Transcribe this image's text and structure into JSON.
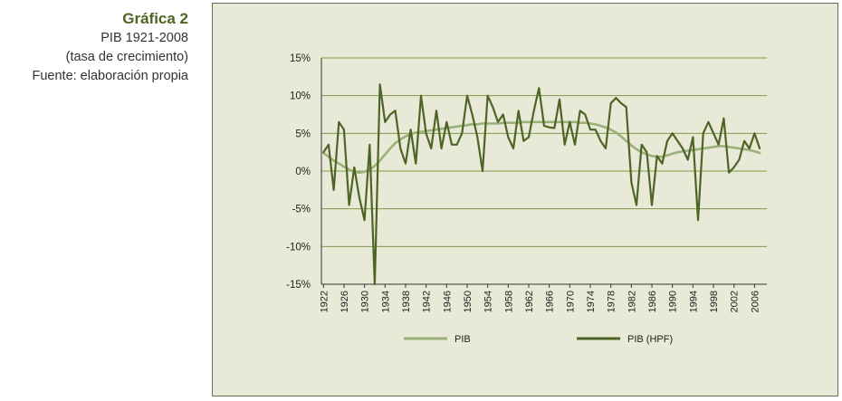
{
  "caption": {
    "title": "Gráfica 2",
    "subtitle": "PIB 1921-2008",
    "unit": "(tasa de crecimiento)",
    "source": "Fuente: elaboración propia"
  },
  "colors": {
    "panel_bg": "#e9e9d7",
    "axis": "#333333",
    "grid": "#7f9a4a",
    "PIB": "#9cb07a",
    "PIB (HPF)": "#4d6425"
  },
  "chart_data": {
    "type": "line",
    "title": "",
    "xlabel": "",
    "ylabel": "",
    "ylim": [
      -15,
      15
    ],
    "yticks": [
      15,
      10,
      5,
      0,
      -5,
      -10,
      -15
    ],
    "ytick_labels": [
      "15%",
      "10%",
      "5%",
      "0%",
      "-5%",
      "-10%",
      "-15%"
    ],
    "xlim": [
      1921.6,
      2008.4
    ],
    "xticks": [
      1922,
      1926,
      1930,
      1934,
      1938,
      1942,
      1946,
      1950,
      1954,
      1958,
      1962,
      1966,
      1970,
      1974,
      1978,
      1982,
      1986,
      1990,
      1994,
      1998,
      2002,
      2006
    ],
    "grid": "horizontal",
    "legend": "bottom",
    "x": [
      1922,
      1923,
      1924,
      1925,
      1926,
      1927,
      1928,
      1929,
      1930,
      1931,
      1932,
      1933,
      1934,
      1935,
      1936,
      1937,
      1938,
      1939,
      1940,
      1941,
      1942,
      1943,
      1944,
      1945,
      1946,
      1947,
      1948,
      1949,
      1950,
      1951,
      1952,
      1953,
      1954,
      1955,
      1956,
      1957,
      1958,
      1959,
      1960,
      1961,
      1962,
      1963,
      1964,
      1965,
      1966,
      1967,
      1968,
      1969,
      1970,
      1971,
      1972,
      1973,
      1974,
      1975,
      1976,
      1977,
      1978,
      1979,
      1980,
      1981,
      1982,
      1983,
      1984,
      1985,
      1986,
      1987,
      1988,
      1989,
      1990,
      1991,
      1992,
      1993,
      1994,
      1995,
      1996,
      1997,
      1998,
      1999,
      2000,
      2001,
      2002,
      2003,
      2004,
      2005,
      2006,
      2007
    ],
    "series": [
      {
        "name": "PIB",
        "values": [
          2.4,
          1.9,
          1.4,
          1.0,
          0.6,
          0.2,
          -0.1,
          -0.2,
          -0.1,
          0.2,
          0.7,
          1.4,
          2.2,
          3.0,
          3.7,
          4.2,
          4.6,
          4.9,
          5.1,
          5.2,
          5.3,
          5.4,
          5.5,
          5.6,
          5.7,
          5.8,
          5.9,
          6.0,
          6.1,
          6.2,
          6.2,
          6.3,
          6.3,
          6.3,
          6.3,
          6.4,
          6.4,
          6.4,
          6.4,
          6.5,
          6.5,
          6.5,
          6.5,
          6.5,
          6.5,
          6.5,
          6.5,
          6.5,
          6.5,
          6.5,
          6.4,
          6.4,
          6.3,
          6.2,
          6.0,
          5.8,
          5.5,
          5.1,
          4.6,
          4.0,
          3.4,
          2.9,
          2.5,
          2.2,
          2.0,
          1.9,
          1.9,
          2.1,
          2.3,
          2.5,
          2.6,
          2.7,
          2.8,
          2.9,
          3.0,
          3.1,
          3.2,
          3.3,
          3.3,
          3.2,
          3.1,
          3.0,
          2.9,
          2.8,
          2.6,
          2.4
        ]
      },
      {
        "name": "PIB (HPF)",
        "values": [
          2.5,
          3.5,
          -2.5,
          6.5,
          5.5,
          -4.5,
          0.5,
          -3.5,
          -6.5,
          3.5,
          -15.0,
          11.5,
          6.5,
          7.5,
          8.0,
          3.0,
          1.0,
          5.5,
          1.0,
          10.0,
          5.0,
          3.0,
          8.0,
          3.0,
          6.5,
          3.5,
          3.5,
          5.0,
          10.0,
          7.5,
          4.5,
          0.0,
          10.0,
          8.5,
          6.5,
          7.5,
          4.5,
          3.0,
          8.0,
          4.0,
          4.5,
          8.0,
          11.0,
          6.0,
          5.8,
          5.7,
          9.5,
          3.5,
          6.5,
          3.5,
          8.0,
          7.5,
          5.5,
          5.5,
          4.0,
          3.0,
          9.0,
          9.7,
          9.0,
          8.5,
          -1.5,
          -4.5,
          3.5,
          2.5,
          -4.5,
          2.0,
          1.0,
          4.0,
          5.0,
          4.0,
          3.0,
          1.5,
          4.5,
          -6.5,
          5.0,
          6.5,
          5.0,
          3.5,
          7.0,
          -0.2,
          0.5,
          1.5,
          4.0,
          3.0,
          5.0,
          3.0
        ]
      }
    ]
  }
}
